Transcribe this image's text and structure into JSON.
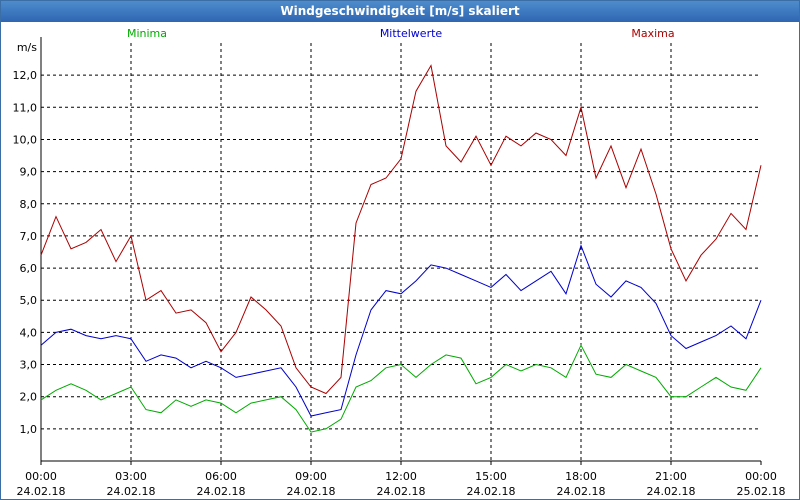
{
  "window": {
    "title": "Windgeschwindigkeit [m/s] skaliert"
  },
  "chart_data": {
    "type": "line",
    "title": "Windgeschwindigkeit [m/s] skaliert",
    "ylabel": "m/s",
    "ylim": [
      0,
      13
    ],
    "yticks": [
      1,
      2,
      3,
      4,
      5,
      6,
      7,
      8,
      9,
      10,
      11,
      12
    ],
    "ytick_labels": [
      "1,0",
      "2,0",
      "3,0",
      "4,0",
      "5,0",
      "6,0",
      "7,0",
      "8,0",
      "9,0",
      "10,0",
      "11,0",
      "12,0"
    ],
    "xlim": [
      0,
      24
    ],
    "xticks": [
      {
        "t": 0,
        "time": "00:00",
        "date": "24.02.18"
      },
      {
        "t": 3,
        "time": "03:00",
        "date": "24.02.18"
      },
      {
        "t": 6,
        "time": "06:00",
        "date": "24.02.18"
      },
      {
        "t": 9,
        "time": "09:00",
        "date": "24.02.18"
      },
      {
        "t": 12,
        "time": "12:00",
        "date": "24.02.18"
      },
      {
        "t": 15,
        "time": "15:00",
        "date": "24.02.18"
      },
      {
        "t": 18,
        "time": "18:00",
        "date": "24.02.18"
      },
      {
        "t": 21,
        "time": "21:00",
        "date": "24.02.18"
      },
      {
        "t": 24,
        "time": "00:00",
        "date": "25.02.18"
      }
    ],
    "legend": {
      "placement": "top"
    },
    "grid": true,
    "series": [
      {
        "name": "Minima",
        "color": "#00aa00",
        "x": [
          0,
          0.5,
          1,
          1.5,
          2,
          2.5,
          3,
          3.5,
          4,
          4.5,
          5,
          5.5,
          6,
          6.5,
          7,
          7.5,
          8,
          8.5,
          9,
          9.5,
          10,
          10.5,
          11,
          11.5,
          12,
          12.5,
          13,
          13.5,
          14,
          14.5,
          15,
          15.5,
          16,
          16.5,
          17,
          17.5,
          18,
          18.5,
          19,
          19.5,
          20,
          20.5,
          21,
          21.5,
          22,
          22.5,
          23,
          23.5,
          24
        ],
        "values": [
          1.9,
          2.2,
          2.4,
          2.2,
          1.9,
          2.1,
          2.3,
          1.6,
          1.5,
          1.9,
          1.7,
          1.9,
          1.8,
          1.5,
          1.8,
          1.9,
          2.0,
          1.6,
          0.9,
          1.0,
          1.3,
          2.3,
          2.5,
          2.9,
          3.0,
          2.6,
          3.0,
          3.3,
          3.2,
          2.4,
          2.6,
          3.0,
          2.8,
          3.0,
          2.9,
          2.6,
          3.6,
          2.7,
          2.6,
          3.0,
          2.8,
          2.6,
          2.0,
          2.0,
          2.3,
          2.6,
          2.3,
          2.2,
          2.9
        ]
      },
      {
        "name": "Mittelwerte",
        "color": "#0000cc",
        "x": [
          0,
          0.5,
          1,
          1.5,
          2,
          2.5,
          3,
          3.5,
          4,
          4.5,
          5,
          5.5,
          6,
          6.5,
          7,
          7.5,
          8,
          8.5,
          9,
          9.5,
          10,
          10.5,
          11,
          11.5,
          12,
          12.5,
          13,
          13.5,
          14,
          14.5,
          15,
          15.5,
          16,
          16.5,
          17,
          17.5,
          18,
          18.5,
          19,
          19.5,
          20,
          20.5,
          21,
          21.5,
          22,
          22.5,
          23,
          23.5,
          24
        ],
        "values": [
          3.6,
          4.0,
          4.1,
          3.9,
          3.8,
          3.9,
          3.8,
          3.1,
          3.3,
          3.2,
          2.9,
          3.1,
          2.9,
          2.6,
          2.7,
          2.8,
          2.9,
          2.3,
          1.4,
          1.5,
          1.6,
          3.3,
          4.7,
          5.3,
          5.2,
          5.6,
          6.1,
          6.0,
          5.8,
          5.6,
          5.4,
          5.8,
          5.3,
          5.6,
          5.9,
          5.2,
          6.7,
          5.5,
          5.1,
          5.6,
          5.4,
          4.9,
          3.9,
          3.5,
          3.7,
          3.9,
          4.2,
          3.8,
          5.0
        ]
      },
      {
        "name": "Maxima",
        "color": "#aa0000",
        "x": [
          0,
          0.5,
          1,
          1.5,
          2,
          2.5,
          3,
          3.5,
          4,
          4.5,
          5,
          5.5,
          6,
          6.5,
          7,
          7.5,
          8,
          8.5,
          9,
          9.5,
          10,
          10.5,
          11,
          11.5,
          12,
          12.5,
          13,
          13.5,
          14,
          14.5,
          15,
          15.5,
          16,
          16.5,
          17,
          17.5,
          18,
          18.5,
          19,
          19.5,
          20,
          20.5,
          21,
          21.5,
          22,
          22.5,
          23,
          23.5,
          24
        ],
        "values": [
          6.4,
          7.6,
          6.6,
          6.8,
          7.2,
          6.2,
          7.0,
          5.0,
          5.3,
          4.6,
          4.7,
          4.3,
          3.4,
          4.0,
          5.1,
          4.7,
          4.2,
          2.9,
          2.3,
          2.1,
          2.6,
          7.4,
          8.6,
          8.8,
          9.4,
          11.5,
          12.3,
          9.8,
          9.3,
          10.1,
          9.2,
          10.1,
          9.8,
          10.2,
          10.0,
          9.5,
          11.0,
          8.8,
          9.8,
          8.5,
          9.7,
          8.3,
          6.6,
          5.6,
          6.4,
          6.9,
          7.7,
          7.2,
          9.2
        ]
      }
    ]
  }
}
